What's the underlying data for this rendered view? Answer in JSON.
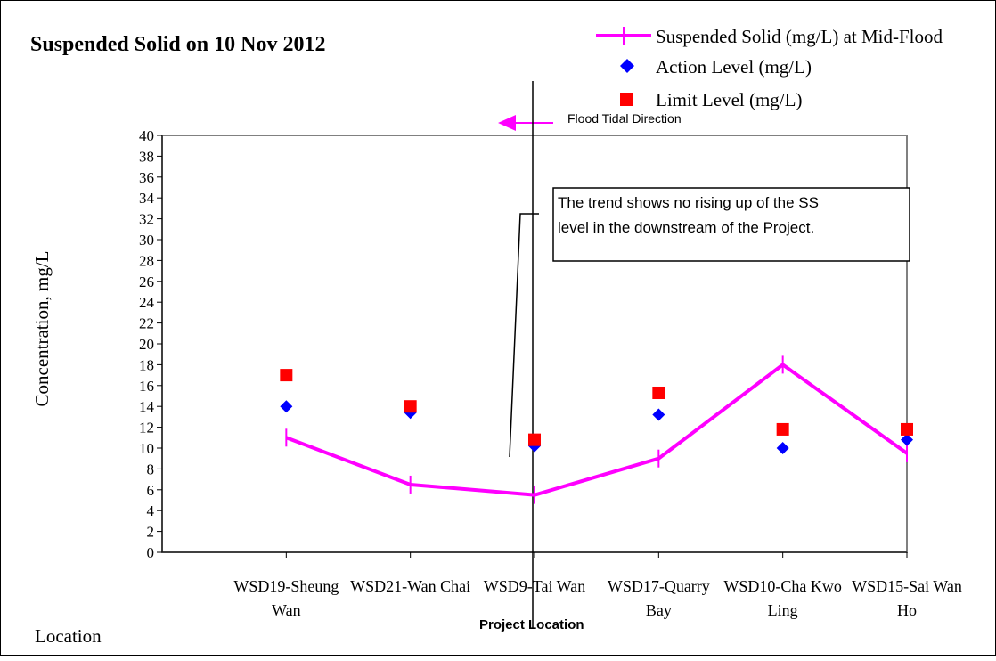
{
  "chart_data": {
    "type": "line",
    "title": "Suspended Solid on 10 Nov 2012",
    "xlabel": "Location",
    "ylabel": "Concentration, mg/L",
    "ylim": [
      0,
      40
    ],
    "ytick_step": 2,
    "categories": [
      [
        "WSD19-Sheung",
        "Wan"
      ],
      [
        "WSD21-Wan Chai",
        ""
      ],
      [
        "WSD9-Tai Wan",
        ""
      ],
      [
        "WSD17-Quarry",
        "Bay"
      ],
      [
        "WSD10-Cha Kwo",
        "Ling"
      ],
      [
        "WSD15-Sai Wan",
        "Ho"
      ]
    ],
    "series": [
      {
        "name": "Suspended Solid (mg/L) at Mid-Flood",
        "kind": "line",
        "marker": "plus",
        "color": "#ff00ff",
        "values": [
          11,
          6.5,
          5.5,
          9,
          18,
          9.5
        ]
      },
      {
        "name": "Action Level (mg/L)",
        "kind": "scatter",
        "marker": "diamond",
        "color": "#0000ff",
        "values": [
          14,
          13.4,
          10.2,
          13.2,
          10,
          10.8
        ]
      },
      {
        "name": "Limit Level (mg/L)",
        "kind": "scatter",
        "marker": "square",
        "color": "#ff0000",
        "values": [
          17,
          14,
          10.8,
          15.3,
          11.8,
          11.8
        ]
      }
    ],
    "legend_position": "top-right",
    "grid": false,
    "annotations": {
      "flood_direction": "Flood Tidal Direction",
      "trend_note": [
        "The trend shows no rising up of the SS",
        "level in the downstream of the Project."
      ],
      "project_location": "Project Location"
    }
  }
}
